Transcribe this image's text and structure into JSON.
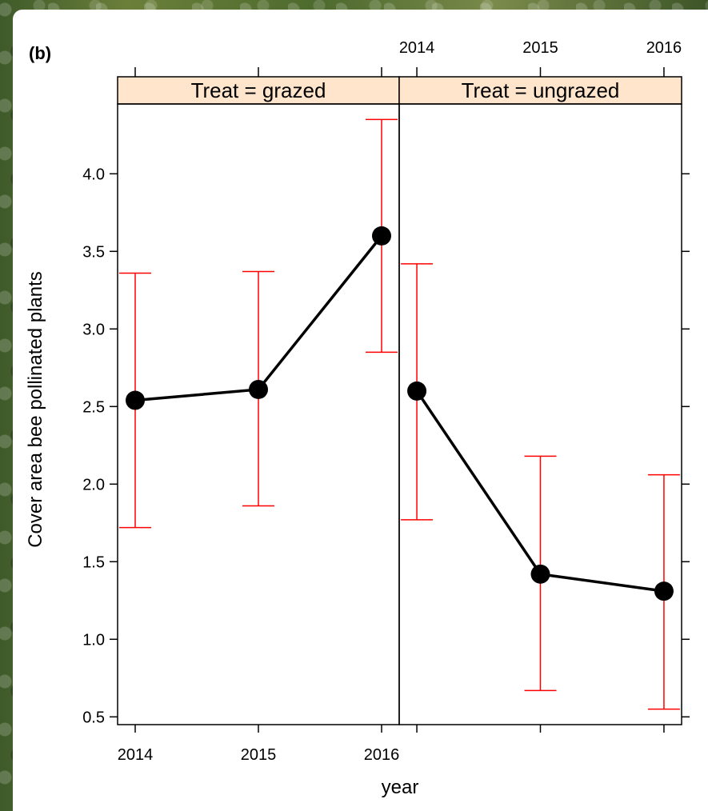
{
  "panel_label": "(b)",
  "chart_data": {
    "type": "line",
    "xlabel": "year",
    "ylabel": "Cover area bee pollinated plants",
    "categories": [
      "2014",
      "2015",
      "2016"
    ],
    "ylim": [
      0.45,
      4.45
    ],
    "yticks": [
      "0.5",
      "1.0",
      "1.5",
      "2.0",
      "2.5",
      "3.0",
      "3.5",
      "4.0"
    ],
    "ytick_values": [
      0.5,
      1.0,
      1.5,
      2.0,
      2.5,
      3.0,
      3.5,
      4.0
    ],
    "colors": {
      "strip": "#ffe5cc",
      "error_bar": "#ff0000",
      "line": "#000000"
    },
    "panels": [
      {
        "strip_label": "Treat = grazed",
        "values": [
          2.54,
          2.61,
          3.6
        ],
        "lower": [
          1.72,
          1.86,
          2.85
        ],
        "upper": [
          3.36,
          3.37,
          4.35
        ]
      },
      {
        "strip_label": "Treat = ungrazed",
        "values": [
          2.6,
          1.42,
          1.31
        ],
        "lower": [
          1.77,
          0.67,
          0.55
        ],
        "upper": [
          3.42,
          2.18,
          2.06
        ]
      }
    ]
  }
}
